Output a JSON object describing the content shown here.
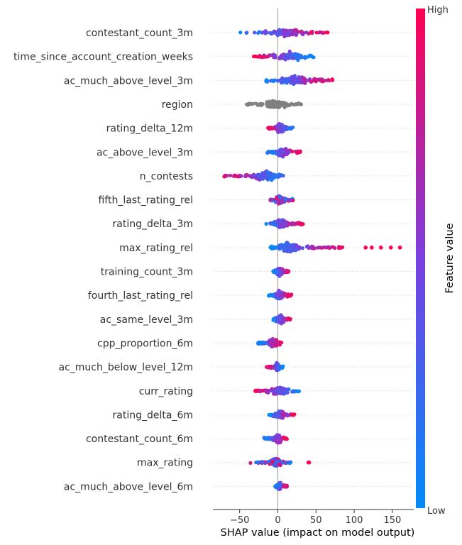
{
  "chart_data": {
    "type": "beeswarm",
    "xlabel": "SHAP value (impact on model output)",
    "xticks": [
      -50,
      0,
      50,
      100,
      150
    ],
    "xlim": [
      -85,
      178
    ],
    "colorbar": {
      "label": "Feature value",
      "high_label": "High",
      "low_label": "Low"
    },
    "colors": {
      "low": "#008bfb",
      "high": "#ff0052",
      "neutral": "#808080"
    },
    "features": [
      {
        "name": "contestant_count_3m",
        "range": [
          -52,
          67
        ],
        "core": [
          -18,
          40
        ],
        "trend": "high_right"
      },
      {
        "name": "time_since_account_creation_weeks",
        "range": [
          -33,
          47
        ],
        "core": [
          -8,
          40
        ],
        "trend": "high_left"
      },
      {
        "name": "ac_much_above_level_3m",
        "range": [
          -18,
          72
        ],
        "core": [
          -8,
          55
        ],
        "trend": "high_right"
      },
      {
        "name": "region",
        "range": [
          -41,
          31
        ],
        "core": [
          -20,
          15
        ],
        "trend": "neutral"
      },
      {
        "name": "rating_delta_12m",
        "range": [
          -13,
          20
        ],
        "core": [
          -6,
          12
        ],
        "trend": "high_left"
      },
      {
        "name": "ac_above_level_3m",
        "range": [
          -14,
          30
        ],
        "core": [
          -6,
          20
        ],
        "trend": "high_right"
      },
      {
        "name": "n_contests",
        "range": [
          -75,
          13
        ],
        "core": [
          -40,
          8
        ],
        "trend": "high_left"
      },
      {
        "name": "fifth_last_rating_rel",
        "range": [
          -10,
          20
        ],
        "core": [
          -5,
          10
        ],
        "trend": "mixed"
      },
      {
        "name": "rating_delta_3m",
        "range": [
          -18,
          35
        ],
        "core": [
          -8,
          18
        ],
        "trend": "high_right"
      },
      {
        "name": "max_rating_rel",
        "range": [
          -15,
          85
        ],
        "core": [
          -10,
          40
        ],
        "trend": "high_right",
        "outliers": [
          115,
          123,
          135,
          148,
          160
        ]
      },
      {
        "name": "training_count_3m",
        "range": [
          -7,
          15
        ],
        "core": [
          -4,
          8
        ],
        "trend": "high_right"
      },
      {
        "name": "fourth_last_rating_rel",
        "range": [
          -12,
          18
        ],
        "core": [
          -6,
          10
        ],
        "trend": "high_right"
      },
      {
        "name": "ac_same_level_3m",
        "range": [
          -6,
          17
        ],
        "core": [
          -3,
          10
        ],
        "trend": "high_right"
      },
      {
        "name": "cpp_proportion_6m",
        "range": [
          -26,
          5
        ],
        "core": [
          -15,
          3
        ],
        "trend": "high_right"
      },
      {
        "name": "ac_much_below_level_12m",
        "range": [
          -15,
          7
        ],
        "core": [
          -5,
          4
        ],
        "trend": "high_left"
      },
      {
        "name": "curr_rating",
        "range": [
          -30,
          28
        ],
        "core": [
          -12,
          15
        ],
        "trend": "high_left"
      },
      {
        "name": "rating_delta_6m",
        "range": [
          -12,
          22
        ],
        "core": [
          -6,
          12
        ],
        "trend": "high_right"
      },
      {
        "name": "contestant_count_6m",
        "range": [
          -18,
          12
        ],
        "core": [
          -8,
          8
        ],
        "trend": "high_right"
      },
      {
        "name": "max_rating",
        "range": [
          -37,
          17
        ],
        "core": [
          -15,
          10
        ],
        "trend": "mixed",
        "outliers": [
          40,
          41
        ]
      },
      {
        "name": "ac_much_above_level_6m",
        "range": [
          -4,
          12
        ],
        "core": [
          -2,
          6
        ],
        "trend": "high_right"
      }
    ]
  }
}
